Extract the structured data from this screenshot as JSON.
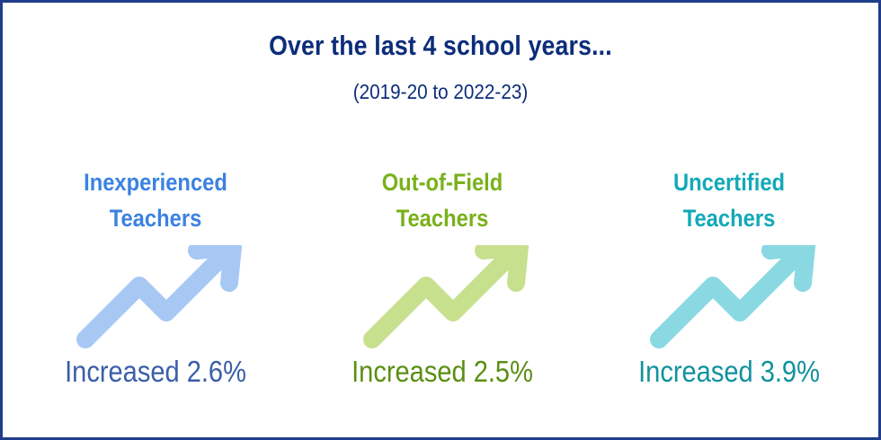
{
  "header": {
    "title": "Over the last 4 school years...",
    "subtitle": "(2019-20 to 2022-23)"
  },
  "cards": [
    {
      "title_line1": "Inexperienced",
      "title_line2": "Teachers",
      "value_text": "Increased 2.6%",
      "title_color": "#3b82e0",
      "arrow_color": "#a8c8f4",
      "value_color": "#3a5ea8",
      "icon": "trend-up-arrow-icon"
    },
    {
      "title_line1": "Out-of-Field",
      "title_line2": "Teachers",
      "value_text": "Increased 2.5%",
      "title_color": "#79b11a",
      "arrow_color": "#c7e08e",
      "value_color": "#5b8f14",
      "icon": "trend-up-arrow-icon"
    },
    {
      "title_line1": "Uncertified",
      "title_line2": "Teachers",
      "value_text": "Increased 3.9%",
      "title_color": "#12a9b8",
      "arrow_color": "#8ad8e2",
      "value_color": "#12919e",
      "icon": "trend-up-arrow-icon"
    }
  ]
}
